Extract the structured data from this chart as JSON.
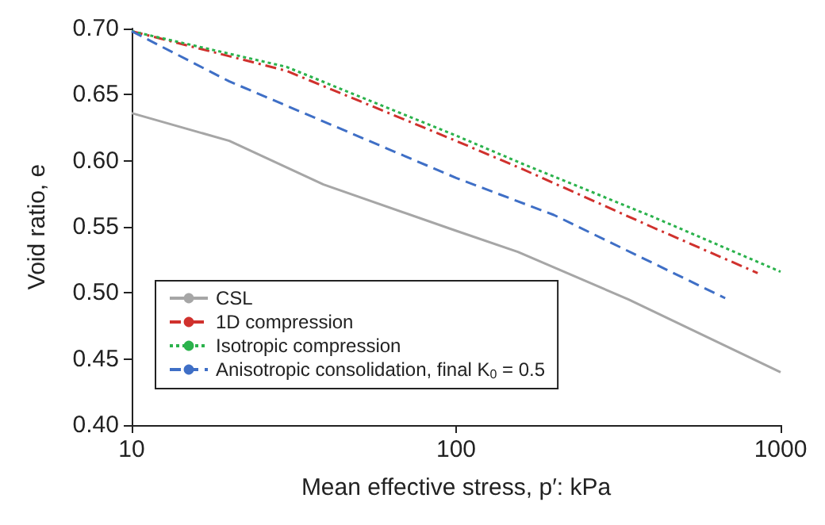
{
  "chart_data": {
    "type": "line",
    "xlabel": "Mean effective stress, p′: kPa",
    "ylabel": "Void ratio, e",
    "log": "x",
    "xlim": [
      10,
      1000
    ],
    "xticks": [
      10,
      100,
      1000
    ],
    "ylim": [
      0.4,
      0.7
    ],
    "yticks": [
      {
        "value": 0.4,
        "label": "0.40"
      },
      0.45,
      {
        "value": 0.5,
        "label": "0.50"
      },
      0.55,
      {
        "value": 0.6,
        "label": "0.60"
      },
      0.65,
      {
        "value": 0.7,
        "label": "0.70"
      }
    ],
    "grid": false,
    "legend": "bottom left",
    "marker": "none",
    "series": [
      {
        "name": "CSL",
        "color": "#a6a6a6",
        "line_style": "solid",
        "x": [
          10,
          20,
          39,
          100,
          155,
          340,
          1000
        ],
        "values": [
          0.636,
          0.615,
          0.582,
          0.547,
          0.531,
          0.495,
          0.44
        ]
      },
      {
        "name": "1D compression",
        "color": "#d0312d",
        "line_style": "dashdot",
        "x": [
          10,
          30,
          100,
          159,
          400,
          850
        ],
        "values": [
          0.698,
          0.668,
          0.615,
          0.594,
          0.55,
          0.515
        ]
      },
      {
        "name": "Isotropic compression",
        "color": "#2bb24c",
        "line_style": "dotted",
        "x": [
          10,
          30,
          100,
          159,
          400,
          1000
        ],
        "values": [
          0.698,
          0.671,
          0.619,
          0.598,
          0.558,
          0.516
        ]
      },
      {
        "name": "Anisotropic consolidation, final K$_{0}$ = 0.5",
        "color": "#3f6fc6",
        "line_style": "dashed",
        "x": [
          10,
          20,
          100,
          200,
          675
        ],
        "values": [
          0.698,
          0.66,
          0.587,
          0.559,
          0.496
        ]
      }
    ]
  }
}
